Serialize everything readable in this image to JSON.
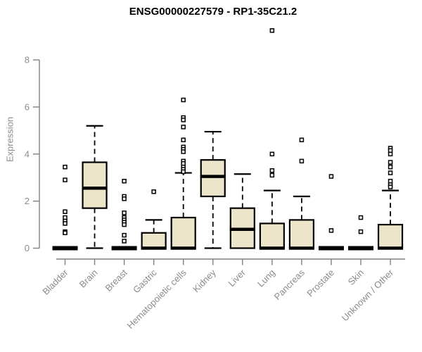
{
  "chart_data": {
    "type": "boxplot",
    "title": "ENSG00000227579 - RP1-35C21.2",
    "ylabel": "Expression",
    "xlabel": "",
    "ylim": [
      0,
      9.6
    ],
    "yticks": [
      0,
      2,
      4,
      6,
      8
    ],
    "grid": false,
    "legend": "none",
    "colors": {
      "box_fill": "#EDE5C9",
      "box_border": "#000000",
      "median": "#000000",
      "axis": "#7F7F7F",
      "tick_text": "#8C8C8C",
      "title_text": "#000000"
    },
    "categories": [
      "Bladder",
      "Brain",
      "Breast",
      "Gastric",
      "Hematopoietic cells",
      "Kidney",
      "Liver",
      "Lung",
      "Pancreas",
      "Prostate",
      "Skin",
      "Unknown / Other"
    ],
    "series": [
      {
        "category": "Bladder",
        "low": 0,
        "q1": 0,
        "median": 0,
        "q3": 0,
        "high": 0,
        "outliers": [
          3.45,
          2.9,
          1.55,
          1.3,
          1.15,
          1.05,
          0.7,
          0.65
        ]
      },
      {
        "category": "Brain",
        "low": 0,
        "q1": 1.7,
        "median": 2.55,
        "q3": 3.65,
        "high": 5.2,
        "outliers": []
      },
      {
        "category": "Breast",
        "low": 0,
        "q1": 0,
        "median": 0,
        "q3": 0,
        "high": 0,
        "outliers": [
          2.85,
          2.2,
          2.1,
          1.5,
          1.3,
          1.2,
          1.1,
          1.0,
          0.55,
          0.3
        ]
      },
      {
        "category": "Gastric",
        "low": 0,
        "q1": 0,
        "median": 0,
        "q3": 0.65,
        "high": 1.2,
        "outliers": [
          2.4
        ]
      },
      {
        "category": "Hematopoietic cells",
        "low": 0,
        "q1": 0,
        "median": 0,
        "q3": 1.3,
        "high": 3.2,
        "outliers": [
          6.3,
          5.55,
          5.45,
          5.15,
          4.6,
          4.3,
          4.2,
          4.1,
          3.7,
          3.6,
          3.45,
          3.35,
          3.25
        ]
      },
      {
        "category": "Kidney",
        "low": 0,
        "q1": 2.2,
        "median": 3.05,
        "q3": 3.75,
        "high": 4.95,
        "outliers": []
      },
      {
        "category": "Liver",
        "low": 0,
        "q1": 0,
        "median": 0.8,
        "q3": 1.7,
        "high": 3.15,
        "outliers": []
      },
      {
        "category": "Lung",
        "low": 0,
        "q1": 0,
        "median": 0,
        "q3": 1.05,
        "high": 2.45,
        "outliers": [
          9.25,
          4.0,
          3.3,
          3.1
        ]
      },
      {
        "category": "Pancreas",
        "low": 0,
        "q1": 0,
        "median": 0,
        "q3": 1.2,
        "high": 2.2,
        "outliers": [
          4.6,
          3.7
        ]
      },
      {
        "category": "Prostate",
        "low": 0,
        "q1": 0,
        "median": 0,
        "q3": 0,
        "high": 0,
        "outliers": [
          3.05,
          0.75
        ]
      },
      {
        "category": "Skin",
        "low": 0,
        "q1": 0,
        "median": 0,
        "q3": 0,
        "high": 0,
        "outliers": [
          1.3,
          0.7
        ]
      },
      {
        "category": "Unknown / Other",
        "low": 0,
        "q1": 0,
        "median": 0,
        "q3": 1.0,
        "high": 2.45,
        "outliers": [
          4.25,
          4.15,
          4.0,
          3.65,
          3.45,
          3.2,
          2.85,
          2.7,
          2.6
        ]
      }
    ]
  }
}
